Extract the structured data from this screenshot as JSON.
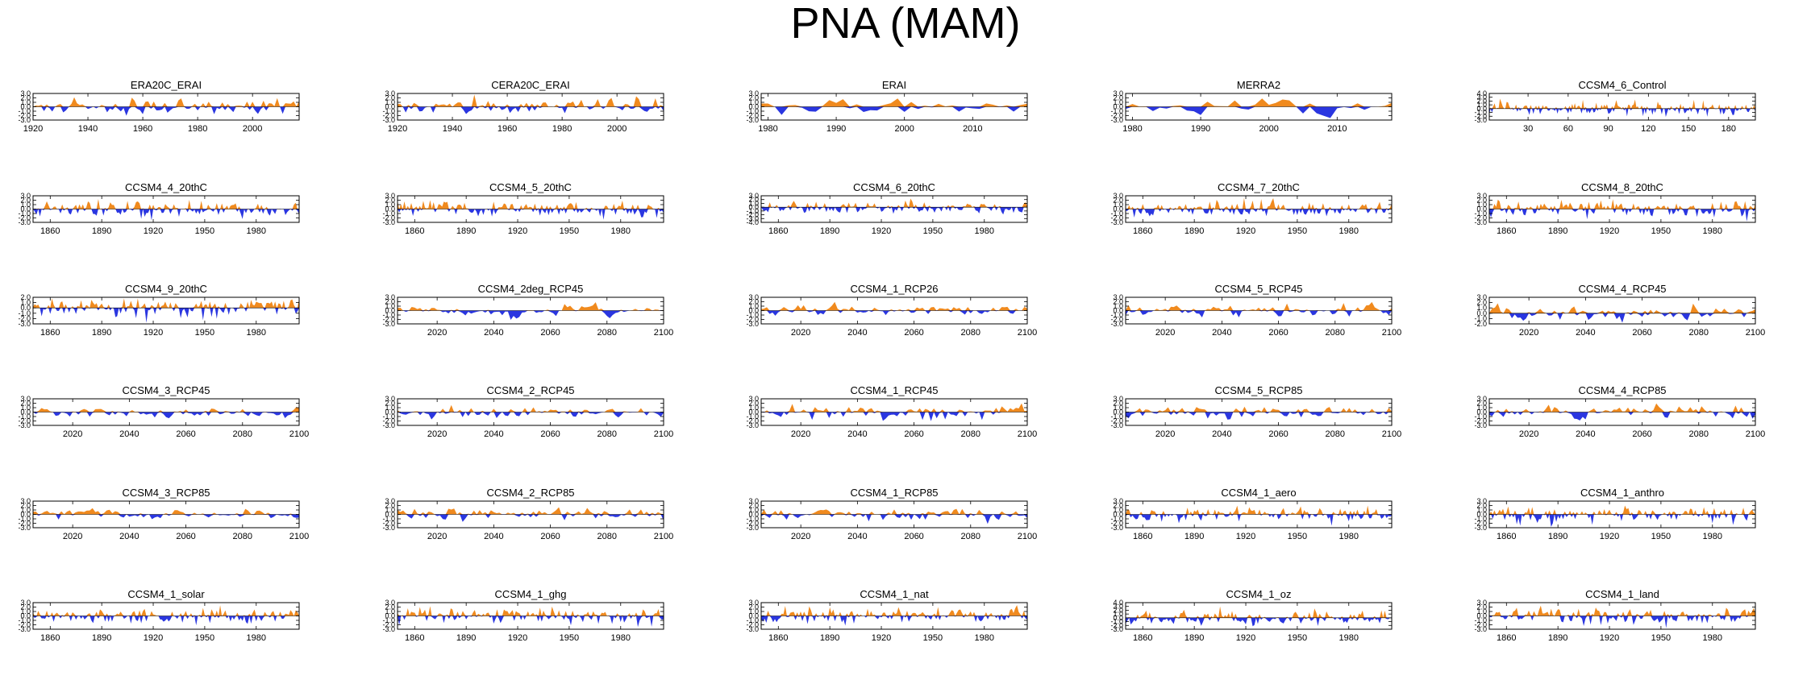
{
  "figure": {
    "title": "PNA (MAM)"
  },
  "colors": {
    "positive": "#f08a1e",
    "negative": "#2a36e0",
    "axis": "#000000"
  },
  "chart_data": [
    {
      "type": "area",
      "title": "ERA20C_ERAI",
      "xlim": [
        1920,
        2017
      ],
      "ylim": [
        -3.0,
        3.0
      ],
      "yticks": [
        "3.0",
        "2.0",
        "1.0",
        "0.0",
        "-1.0",
        "-2.0",
        "-3.0"
      ],
      "xticks": [
        1920,
        1940,
        1960,
        1980,
        2000
      ],
      "xlabels": [
        "1920",
        "1940",
        "1960",
        "1980",
        "2000"
      ],
      "seed": 11,
      "smooth": 0.0
    },
    {
      "type": "area",
      "title": "CERA20C_ERAI",
      "xlim": [
        1920,
        2017
      ],
      "ylim": [
        -3.0,
        3.0
      ],
      "yticks": [
        "3.0",
        "2.0",
        "1.0",
        "0.0",
        "-1.0",
        "-2.0",
        "-3.0"
      ],
      "xticks": [
        1920,
        1940,
        1960,
        1980,
        2000
      ],
      "xlabels": [
        "1920",
        "1940",
        "1960",
        "1980",
        "2000"
      ],
      "seed": 12,
      "smooth": 0.0
    },
    {
      "type": "area",
      "title": "ERAI",
      "xlim": [
        1979,
        2018
      ],
      "ylim": [
        -3.0,
        3.0
      ],
      "yticks": [
        "3.0",
        "2.0",
        "1.0",
        "0.0",
        "-1.0",
        "-2.0",
        "-3.0"
      ],
      "xticks": [
        1980,
        1990,
        2000,
        2010
      ],
      "xlabels": [
        "1980",
        "1990",
        "2000",
        "2010"
      ],
      "seed": 13,
      "smooth": 0.0
    },
    {
      "type": "area",
      "title": "MERRA2",
      "xlim": [
        1979,
        2018
      ],
      "ylim": [
        -3.0,
        3.0
      ],
      "yticks": [
        "3.0",
        "2.0",
        "1.0",
        "0.0",
        "-1.0",
        "-2.0",
        "-3.0"
      ],
      "xticks": [
        1980,
        1990,
        2000,
        2010
      ],
      "xlabels": [
        "1980",
        "1990",
        "2000",
        "2010"
      ],
      "seed": 14,
      "smooth": 0.0
    },
    {
      "type": "area",
      "title": "CCSM4_6_Control",
      "xlim": [
        1,
        200
      ],
      "ylim": [
        -3.0,
        4.0
      ],
      "yticks": [
        "4.0",
        "3.0",
        "2.0",
        "1.0",
        "0.0",
        "-1.0",
        "-2.0",
        "-3.0"
      ],
      "xticks": [
        30,
        60,
        90,
        120,
        150,
        180
      ],
      "xlabels": [
        "30",
        "60",
        "90",
        "120",
        "150",
        "180"
      ],
      "seed": 15,
      "smooth": 0.0
    },
    {
      "type": "area",
      "title": "CCSM4_4_20thC",
      "xlim": [
        1850,
        2005
      ],
      "ylim": [
        -3.0,
        3.0
      ],
      "yticks": [
        "3.0",
        "2.0",
        "1.0",
        "0.0",
        "-1.0",
        "-2.0",
        "-3.0"
      ],
      "xticks": [
        1860,
        1890,
        1920,
        1950,
        1980
      ],
      "xlabels": [
        "1860",
        "1890",
        "1920",
        "1950",
        "1980"
      ],
      "seed": 21,
      "smooth": 0.0
    },
    {
      "type": "area",
      "title": "CCSM4_5_20thC",
      "xlim": [
        1850,
        2005
      ],
      "ylim": [
        -3.0,
        3.0
      ],
      "yticks": [
        "3.0",
        "2.0",
        "1.0",
        "0.0",
        "-1.0",
        "-2.0",
        "-3.0"
      ],
      "xticks": [
        1860,
        1890,
        1920,
        1950,
        1980
      ],
      "xlabels": [
        "1860",
        "1890",
        "1920",
        "1950",
        "1980"
      ],
      "seed": 22,
      "smooth": 0.0
    },
    {
      "type": "area",
      "title": "CCSM4_6_20thC",
      "xlim": [
        1850,
        2005
      ],
      "ylim": [
        -4.0,
        3.0
      ],
      "yticks": [
        "3.0",
        "2.0",
        "1.0",
        "0.0",
        "-1.0",
        "-2.0",
        "-3.0",
        "-4.0"
      ],
      "xticks": [
        1860,
        1890,
        1920,
        1950,
        1980
      ],
      "xlabels": [
        "1860",
        "1890",
        "1920",
        "1950",
        "1980"
      ],
      "seed": 23,
      "smooth": 0.0
    },
    {
      "type": "area",
      "title": "CCSM4_7_20thC",
      "xlim": [
        1850,
        2005
      ],
      "ylim": [
        -3.0,
        3.0
      ],
      "yticks": [
        "3.0",
        "2.0",
        "1.0",
        "0.0",
        "-1.0",
        "-2.0",
        "-3.0"
      ],
      "xticks": [
        1860,
        1890,
        1920,
        1950,
        1980
      ],
      "xlabels": [
        "1860",
        "1890",
        "1920",
        "1950",
        "1980"
      ],
      "seed": 24,
      "smooth": 0.0
    },
    {
      "type": "area",
      "title": "CCSM4_8_20thC",
      "xlim": [
        1850,
        2005
      ],
      "ylim": [
        -3.0,
        3.0
      ],
      "yticks": [
        "3.0",
        "2.0",
        "1.0",
        "0.0",
        "-1.0",
        "-2.0",
        "-3.0"
      ],
      "xticks": [
        1860,
        1890,
        1920,
        1950,
        1980
      ],
      "xlabels": [
        "1860",
        "1890",
        "1920",
        "1950",
        "1980"
      ],
      "seed": 25,
      "smooth": 0.0
    },
    {
      "type": "area",
      "title": "CCSM4_9_20thC",
      "xlim": [
        1850,
        2005
      ],
      "ylim": [
        -3.0,
        2.0
      ],
      "yticks": [
        "2.0",
        "1.0",
        "0.0",
        "-1.0",
        "-2.0",
        "-3.0"
      ],
      "xticks": [
        1860,
        1890,
        1920,
        1950,
        1980
      ],
      "xlabels": [
        "1860",
        "1890",
        "1920",
        "1950",
        "1980"
      ],
      "seed": 31,
      "smooth": 0.0
    },
    {
      "type": "area",
      "title": "CCSM4_2deg_RCP45",
      "xlim": [
        2006,
        2100
      ],
      "ylim": [
        -3.0,
        3.0
      ],
      "yticks": [
        "3.0",
        "2.0",
        "1.0",
        "0.0",
        "-1.0",
        "-2.0",
        "-3.0"
      ],
      "xticks": [
        2020,
        2040,
        2060,
        2080,
        2100
      ],
      "xlabels": [
        "2020",
        "2040",
        "2060",
        "2080",
        "2100"
      ],
      "seed": 32,
      "smooth": 0.5
    },
    {
      "type": "area",
      "title": "CCSM4_1_RCP26",
      "xlim": [
        2006,
        2100
      ],
      "ylim": [
        -3.0,
        3.0
      ],
      "yticks": [
        "3.0",
        "2.0",
        "1.0",
        "0.0",
        "-1.0",
        "-2.0",
        "-3.0"
      ],
      "xticks": [
        2020,
        2040,
        2060,
        2080,
        2100
      ],
      "xlabels": [
        "2020",
        "2040",
        "2060",
        "2080",
        "2100"
      ],
      "seed": 33,
      "smooth": 0.3
    },
    {
      "type": "area",
      "title": "CCSM4_5_RCP45",
      "xlim": [
        2006,
        2100
      ],
      "ylim": [
        -3.0,
        3.0
      ],
      "yticks": [
        "3.0",
        "2.0",
        "1.0",
        "0.0",
        "-1.0",
        "-2.0",
        "-3.0"
      ],
      "xticks": [
        2020,
        2040,
        2060,
        2080,
        2100
      ],
      "xlabels": [
        "2020",
        "2040",
        "2060",
        "2080",
        "2100"
      ],
      "seed": 34,
      "smooth": 0.3
    },
    {
      "type": "area",
      "title": "CCSM4_4_RCP45",
      "xlim": [
        2006,
        2100
      ],
      "ylim": [
        -2.0,
        3.0
      ],
      "yticks": [
        "3.0",
        "2.0",
        "1.0",
        "0.0",
        "-1.0",
        "-2.0"
      ],
      "xticks": [
        2020,
        2040,
        2060,
        2080,
        2100
      ],
      "xlabels": [
        "2020",
        "2040",
        "2060",
        "2080",
        "2100"
      ],
      "seed": 35,
      "smooth": 0.3
    },
    {
      "type": "area",
      "title": "CCSM4_3_RCP45",
      "xlim": [
        2006,
        2100
      ],
      "ylim": [
        -3.0,
        3.0
      ],
      "yticks": [
        "3.0",
        "2.0",
        "1.0",
        "0.0",
        "-1.0",
        "-2.0",
        "-3.0"
      ],
      "xticks": [
        2020,
        2040,
        2060,
        2080,
        2100
      ],
      "xlabels": [
        "2020",
        "2040",
        "2060",
        "2080",
        "2100"
      ],
      "seed": 41,
      "smooth": 0.4
    },
    {
      "type": "area",
      "title": "CCSM4_2_RCP45",
      "xlim": [
        2006,
        2100
      ],
      "ylim": [
        -3.0,
        3.0
      ],
      "yticks": [
        "3.0",
        "2.0",
        "1.0",
        "0.0",
        "-1.0",
        "-2.0",
        "-3.0"
      ],
      "xticks": [
        2020,
        2040,
        2060,
        2080,
        2100
      ],
      "xlabels": [
        "2020",
        "2040",
        "2060",
        "2080",
        "2100"
      ],
      "seed": 42,
      "smooth": 0.3
    },
    {
      "type": "area",
      "title": "CCSM4_1_RCP45",
      "xlim": [
        2006,
        2100
      ],
      "ylim": [
        -3.0,
        3.0
      ],
      "yticks": [
        "3.0",
        "2.0",
        "1.0",
        "0.0",
        "-1.0",
        "-2.0",
        "-3.0"
      ],
      "xticks": [
        2020,
        2040,
        2060,
        2080,
        2100
      ],
      "xlabels": [
        "2020",
        "2040",
        "2060",
        "2080",
        "2100"
      ],
      "seed": 43,
      "smooth": 0.1
    },
    {
      "type": "area",
      "title": "CCSM4_5_RCP85",
      "xlim": [
        2006,
        2100
      ],
      "ylim": [
        -3.0,
        3.0
      ],
      "yticks": [
        "3.0",
        "2.0",
        "1.0",
        "0.0",
        "-1.0",
        "-2.0",
        "-3.0"
      ],
      "xticks": [
        2020,
        2040,
        2060,
        2080,
        2100
      ],
      "xlabels": [
        "2020",
        "2040",
        "2060",
        "2080",
        "2100"
      ],
      "seed": 44,
      "smooth": 0.2
    },
    {
      "type": "area",
      "title": "CCSM4_4_RCP85",
      "xlim": [
        2006,
        2100
      ],
      "ylim": [
        -3.0,
        3.0
      ],
      "yticks": [
        "3.0",
        "2.0",
        "1.0",
        "0.0",
        "-1.0",
        "-2.0",
        "-3.0"
      ],
      "xticks": [
        2020,
        2040,
        2060,
        2080,
        2100
      ],
      "xlabels": [
        "2020",
        "2040",
        "2060",
        "2080",
        "2100"
      ],
      "seed": 45,
      "smooth": 0.2
    },
    {
      "type": "area",
      "title": "CCSM4_3_RCP85",
      "xlim": [
        2006,
        2100
      ],
      "ylim": [
        -3.0,
        3.0
      ],
      "yticks": [
        "3.0",
        "2.0",
        "1.0",
        "0.0",
        "-1.0",
        "-2.0",
        "-3.0"
      ],
      "xticks": [
        2020,
        2040,
        2060,
        2080,
        2100
      ],
      "xlabels": [
        "2020",
        "2040",
        "2060",
        "2080",
        "2100"
      ],
      "seed": 51,
      "smooth": 0.4
    },
    {
      "type": "area",
      "title": "CCSM4_2_RCP85",
      "xlim": [
        2006,
        2100
      ],
      "ylim": [
        -3.0,
        3.0
      ],
      "yticks": [
        "3.0",
        "2.0",
        "1.0",
        "0.0",
        "-1.0",
        "-2.0",
        "-3.0"
      ],
      "xticks": [
        2020,
        2040,
        2060,
        2080,
        2100
      ],
      "xlabels": [
        "2020",
        "2040",
        "2060",
        "2080",
        "2100"
      ],
      "seed": 52,
      "smooth": 0.3
    },
    {
      "type": "area",
      "title": "CCSM4_1_RCP85",
      "xlim": [
        2006,
        2100
      ],
      "ylim": [
        -3.0,
        3.0
      ],
      "yticks": [
        "3.0",
        "2.0",
        "1.0",
        "0.0",
        "-1.0",
        "-2.0",
        "-3.0"
      ],
      "xticks": [
        2020,
        2040,
        2060,
        2080,
        2100
      ],
      "xlabels": [
        "2020",
        "2040",
        "2060",
        "2080",
        "2100"
      ],
      "seed": 53,
      "smooth": 0.3
    },
    {
      "type": "area",
      "title": "CCSM4_1_aero",
      "xlim": [
        1850,
        2005
      ],
      "ylim": [
        -3.0,
        3.0
      ],
      "yticks": [
        "3.0",
        "2.0",
        "1.0",
        "0.0",
        "-1.0",
        "-2.0",
        "-3.0"
      ],
      "xticks": [
        1860,
        1890,
        1920,
        1950,
        1980
      ],
      "xlabels": [
        "1860",
        "1890",
        "1920",
        "1950",
        "1980"
      ],
      "seed": 54,
      "smooth": 0.0
    },
    {
      "type": "area",
      "title": "CCSM4_1_anthro",
      "xlim": [
        1850,
        2005
      ],
      "ylim": [
        -3.0,
        3.0
      ],
      "yticks": [
        "3.0",
        "2.0",
        "1.0",
        "0.0",
        "-1.0",
        "-2.0",
        "-3.0"
      ],
      "xticks": [
        1860,
        1890,
        1920,
        1950,
        1980
      ],
      "xlabels": [
        "1860",
        "1890",
        "1920",
        "1950",
        "1980"
      ],
      "seed": 55,
      "smooth": 0.0
    },
    {
      "type": "area",
      "title": "CCSM4_1_solar",
      "xlim": [
        1850,
        2005
      ],
      "ylim": [
        -3.0,
        3.0
      ],
      "yticks": [
        "3.0",
        "2.0",
        "1.0",
        "0.0",
        "-1.0",
        "-2.0",
        "-3.0"
      ],
      "xticks": [
        1860,
        1890,
        1920,
        1950,
        1980
      ],
      "xlabels": [
        "1860",
        "1890",
        "1920",
        "1950",
        "1980"
      ],
      "seed": 61,
      "smooth": 0.0
    },
    {
      "type": "area",
      "title": "CCSM4_1_ghg",
      "xlim": [
        1850,
        2005
      ],
      "ylim": [
        -3.0,
        3.0
      ],
      "yticks": [
        "3.0",
        "2.0",
        "1.0",
        "0.0",
        "-1.0",
        "-2.0",
        "-3.0"
      ],
      "xticks": [
        1860,
        1890,
        1920,
        1950,
        1980
      ],
      "xlabels": [
        "1860",
        "1890",
        "1920",
        "1950",
        "1980"
      ],
      "seed": 62,
      "smooth": 0.0
    },
    {
      "type": "area",
      "title": "CCSM4_1_nat",
      "xlim": [
        1850,
        2005
      ],
      "ylim": [
        -3.0,
        3.0
      ],
      "yticks": [
        "3.0",
        "2.0",
        "1.0",
        "0.0",
        "-1.0",
        "-2.0",
        "-3.0"
      ],
      "xticks": [
        1860,
        1890,
        1920,
        1950,
        1980
      ],
      "xlabels": [
        "1860",
        "1890",
        "1920",
        "1950",
        "1980"
      ],
      "seed": 63,
      "smooth": 0.0
    },
    {
      "type": "area",
      "title": "CCSM4_1_oz",
      "xlim": [
        1850,
        2005
      ],
      "ylim": [
        -3.0,
        4.0
      ],
      "yticks": [
        "4.0",
        "3.0",
        "2.0",
        "1.0",
        "0.0",
        "-1.0",
        "-2.0",
        "-3.0"
      ],
      "xticks": [
        1860,
        1890,
        1920,
        1950,
        1980
      ],
      "xlabels": [
        "1860",
        "1890",
        "1920",
        "1950",
        "1980"
      ],
      "seed": 64,
      "smooth": 0.0
    },
    {
      "type": "area",
      "title": "CCSM4_1_land",
      "xlim": [
        1850,
        2005
      ],
      "ylim": [
        -3.0,
        3.0
      ],
      "yticks": [
        "3.0",
        "2.0",
        "1.0",
        "0.0",
        "-1.0",
        "-2.0",
        "-3.0"
      ],
      "xticks": [
        1860,
        1890,
        1920,
        1950,
        1980
      ],
      "xlabels": [
        "1860",
        "1890",
        "1920",
        "1950",
        "1980"
      ],
      "seed": 65,
      "smooth": 0.0
    }
  ]
}
